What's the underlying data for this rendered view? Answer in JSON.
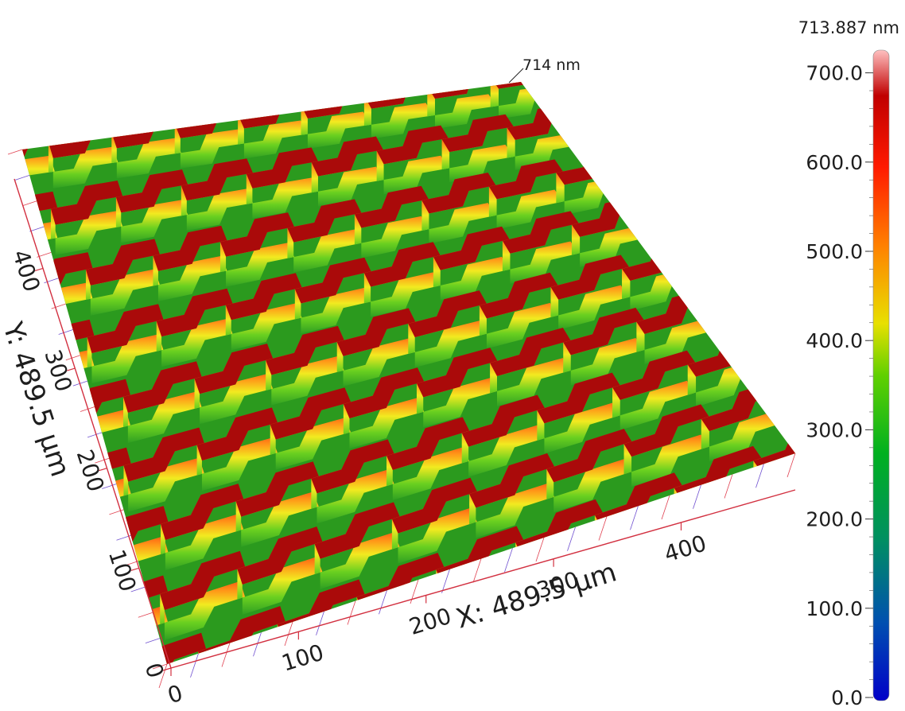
{
  "peak_label": "714 nm",
  "colorbar": {
    "max_label": "713.887 nm",
    "ticks": [
      "700.0",
      "600.0",
      "500.0",
      "400.0",
      "300.0",
      "200.0",
      "100.0",
      "0.0"
    ],
    "tick_values": [
      700,
      600,
      500,
      400,
      300,
      200,
      100,
      0
    ],
    "range": [
      0,
      713.887
    ],
    "colors": [
      "#0000c8",
      "#00a0c0",
      "#00a040",
      "#28d000",
      "#e8e000",
      "#ff8000",
      "#ff1000",
      "#c00000",
      "#ffb0b0"
    ]
  },
  "x_axis": {
    "label": "X: 489.5 µm",
    "ticks": [
      "0",
      "100",
      "200",
      "300",
      "400"
    ],
    "tick_values": [
      0,
      100,
      200,
      300,
      400
    ],
    "range": [
      0,
      489.5
    ]
  },
  "y_axis": {
    "label": "Y: 489.5 µm",
    "ticks": [
      "0",
      "100",
      "200",
      "300",
      "400"
    ],
    "tick_values": [
      0,
      100,
      200,
      300,
      400
    ],
    "range": [
      0,
      489.5
    ]
  },
  "surface_colors": {
    "top": "#aa0a0a",
    "floor": "#2b9a1e",
    "gridline": "#e04050",
    "gridline_alt": "#7050d0"
  }
}
